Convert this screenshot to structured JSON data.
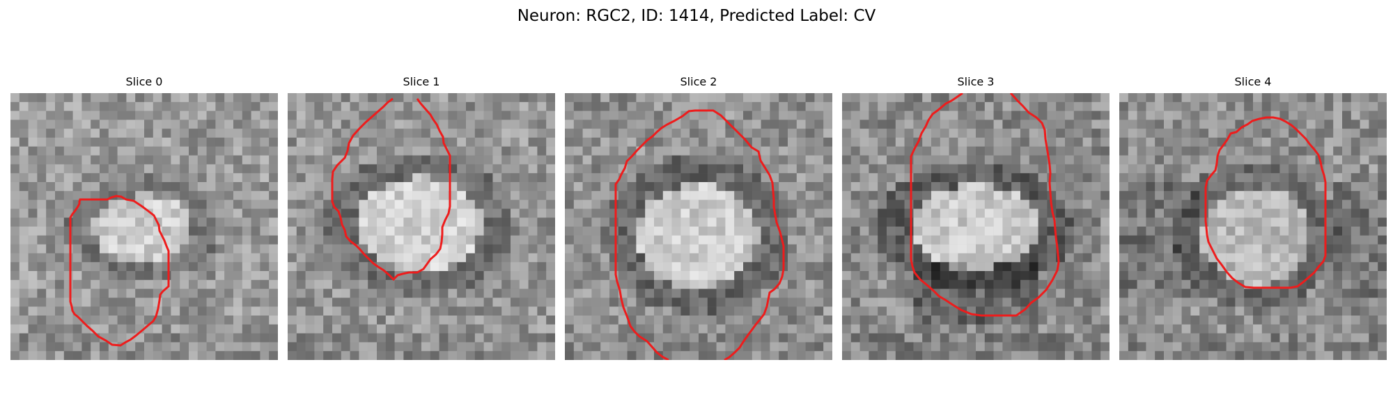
{
  "figure": {
    "title": "Neuron: RGC2, ID: 1414, Predicted Label: CV"
  },
  "panels": [
    {
      "title": "Slice 0"
    },
    {
      "title": "Slice 1"
    },
    {
      "title": "Slice 2"
    },
    {
      "title": "Slice 3"
    },
    {
      "title": "Slice 4"
    }
  ],
  "style": {
    "contour_color": "#ee1c1c"
  }
}
